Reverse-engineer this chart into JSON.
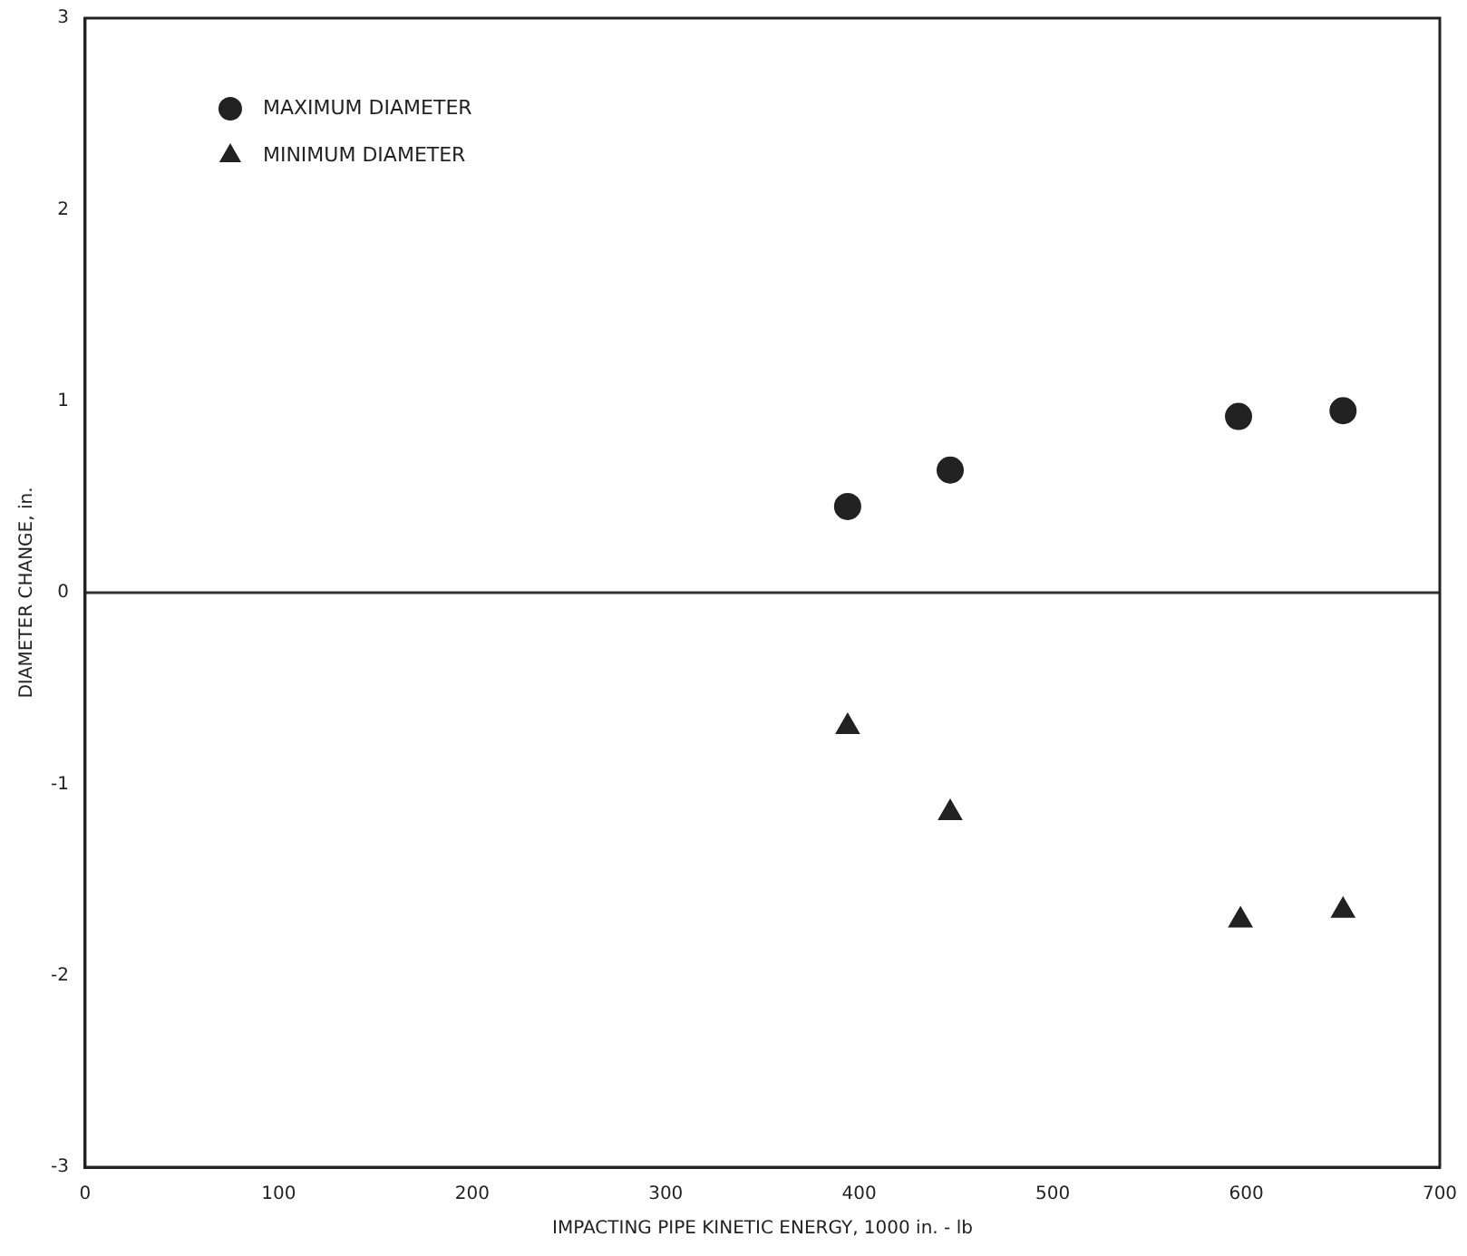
{
  "chart_data": {
    "type": "scatter",
    "xlabel": "IMPACTING PIPE KINETIC ENERGY, 1000 in. - lb",
    "ylabel": "DIAMETER CHANGE, in.",
    "xlim": [
      0,
      700
    ],
    "xticks": [
      0,
      100,
      200,
      300,
      400,
      500,
      600,
      700
    ],
    "ylim": [
      -3,
      3
    ],
    "yticks": [
      -3,
      -2,
      -1,
      0,
      1,
      2,
      3
    ],
    "grid": false,
    "legend": "top left",
    "ref_lines": [
      {
        "axis": "y",
        "value": 0,
        "color": "#333333"
      }
    ],
    "series": [
      {
        "name": "MAXIMUM DIAMETER",
        "color": "#222222",
        "marker": "circle",
        "x": [
          394,
          447,
          596,
          650
        ],
        "values": [
          0.45,
          0.64,
          0.92,
          0.95
        ]
      },
      {
        "name": "MINIMUM DIAMETER",
        "color": "#222222",
        "marker": "triangle",
        "x": [
          394,
          447,
          597,
          650
        ],
        "values": [
          -0.7,
          -1.15,
          -1.71,
          -1.66
        ]
      }
    ]
  }
}
